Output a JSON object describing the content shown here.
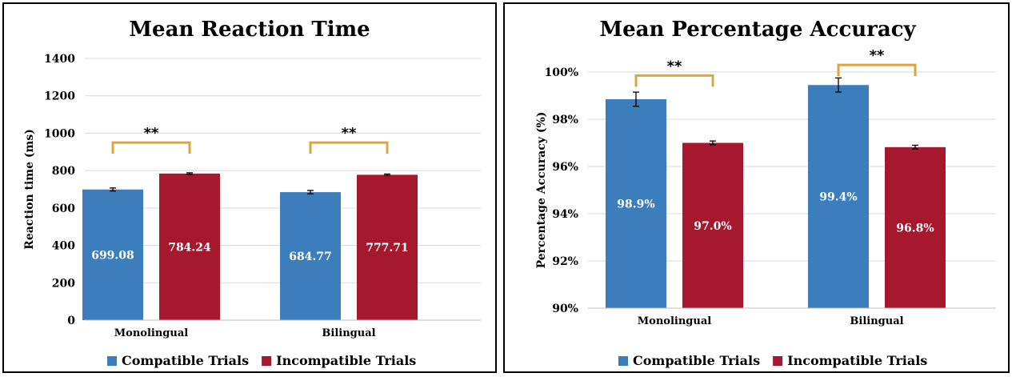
{
  "colors": {
    "compatible": "#3c7ebb",
    "incompatible": "#a5182e",
    "bracket": "#dca53f",
    "grid": "#d9d9d9"
  },
  "chart_data": [
    {
      "type": "bar",
      "title": "Mean Reaction Time",
      "ylabel": "Reaction time (ms)",
      "xlabel": "",
      "categories": [
        "Monolingual",
        "Bilingual"
      ],
      "ylim": [
        0,
        1400
      ],
      "yticks": [
        "0",
        "200",
        "400",
        "600",
        "800",
        "1000",
        "1200",
        "1400"
      ],
      "ytick_values": [
        0,
        200,
        400,
        600,
        800,
        1000,
        1200,
        1400
      ],
      "grid": true,
      "legend_position": "bottom",
      "series": [
        {
          "name": "Compatible Trials",
          "values": [
            699.08,
            684.77
          ],
          "errors": [
            8,
            9
          ],
          "labels": [
            "699.08",
            "684.77"
          ]
        },
        {
          "name": "Incompatible Trials",
          "values": [
            784.24,
            777.71
          ],
          "errors": [
            4,
            4
          ],
          "labels": [
            "784.24",
            "777.71"
          ]
        }
      ],
      "significance": [
        {
          "category": "Monolingual",
          "label": "**",
          "at": 950
        },
        {
          "category": "Bilingual",
          "label": "**",
          "at": 950
        }
      ]
    },
    {
      "type": "bar",
      "title": "Mean Percentage Accuracy",
      "ylabel": "Percentage Accuracy (%)",
      "xlabel": "",
      "categories": [
        "Monolingual",
        "Bilingual"
      ],
      "ylim": [
        90,
        100
      ],
      "yticks": [
        "90%",
        "92%",
        "94%",
        "96%",
        "98%",
        "100%"
      ],
      "ytick_values": [
        90,
        92,
        94,
        96,
        98,
        100
      ],
      "grid": true,
      "legend_position": "bottom",
      "series": [
        {
          "name": "Compatible Trials",
          "values": [
            98.85,
            99.45
          ],
          "errors": [
            0.3,
            0.3
          ],
          "labels": [
            "98.9%",
            "99.4%"
          ]
        },
        {
          "name": "Incompatible Trials",
          "values": [
            97.0,
            96.82
          ],
          "errors": [
            0.08,
            0.08
          ],
          "labels": [
            "97.0%",
            "96.8%"
          ]
        }
      ],
      "significance": [
        {
          "category": "Monolingual",
          "label": "**",
          "at": 99.85
        },
        {
          "category": "Bilingual",
          "label": "**",
          "at": 100.3
        }
      ]
    }
  ]
}
